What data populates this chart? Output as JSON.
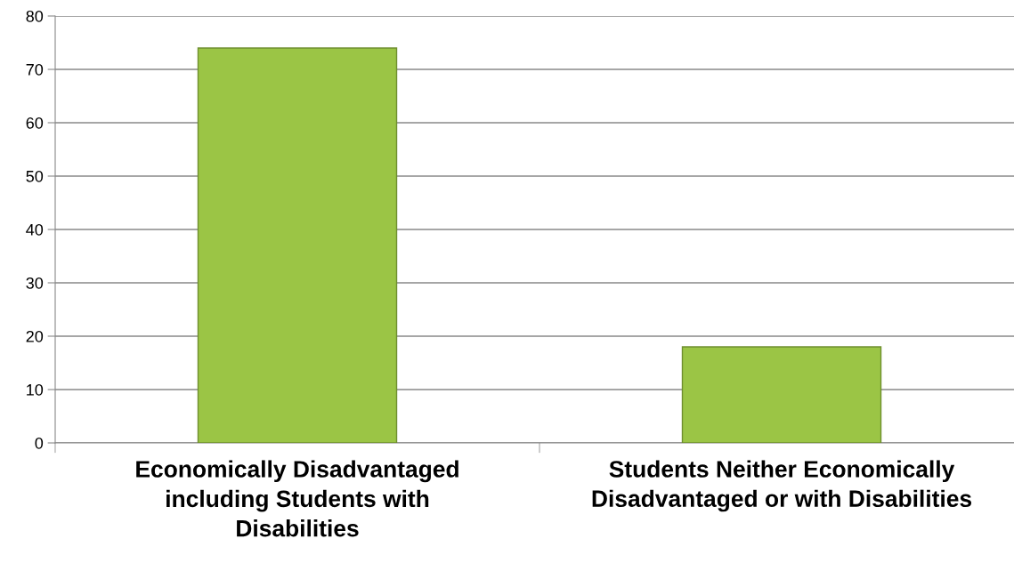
{
  "chart_data": {
    "type": "bar",
    "categories": [
      "Economically Disadvantaged\nincluding Students with\nDisabilities",
      "Students Neither Economically\nDisadvantaged or with Disabilities"
    ],
    "values": [
      74,
      18
    ],
    "color": "#9bc545",
    "ylim": [
      0,
      80
    ],
    "yticks": [
      0,
      10,
      20,
      30,
      40,
      50,
      60,
      70,
      80
    ],
    "grid": "y",
    "legend": false
  }
}
